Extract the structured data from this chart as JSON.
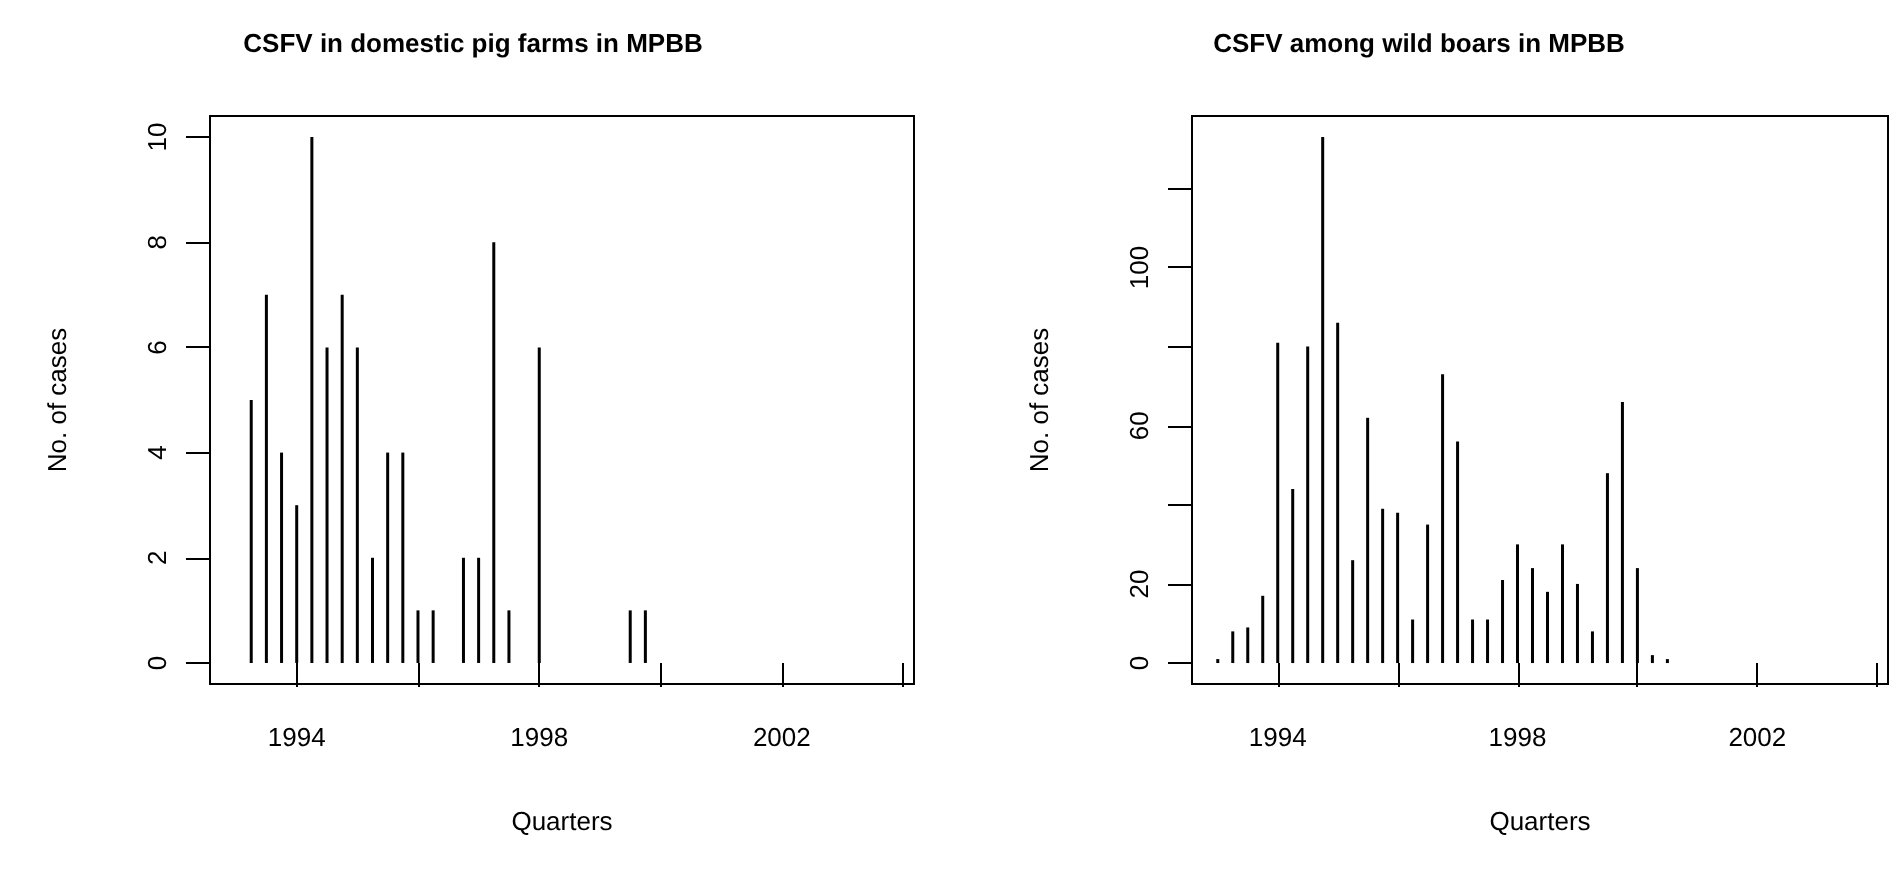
{
  "chart_data": [
    {
      "type": "bar",
      "title": "CSFV in domestic pig farms in MPBB",
      "xlabel": "Quarters",
      "ylabel": "No. of cases",
      "x": [
        1993,
        1993.25,
        1993.5,
        1993.75,
        1994,
        1994.25,
        1994.5,
        1994.75,
        1995,
        1995.25,
        1995.5,
        1995.75,
        1996,
        1996.25,
        1996.5,
        1996.75,
        1997,
        1997.25,
        1997.5,
        1997.75,
        1998,
        1998.25,
        1998.5,
        1998.75,
        1999,
        1999.25,
        1999.5,
        1999.75,
        2000,
        2000.25,
        2000.5,
        2000.75,
        2001,
        2001.25,
        2001.5,
        2001.75,
        2002,
        2002.25,
        2002.5,
        2002.75,
        2003,
        2003.25,
        2003.5,
        2003.75
      ],
      "values": [
        0,
        5,
        7,
        4,
        3,
        10,
        6,
        7,
        6,
        2,
        4,
        4,
        1,
        1,
        0,
        2,
        2,
        8,
        1,
        0,
        6,
        0,
        0,
        0,
        0,
        0,
        1,
        1,
        0,
        0,
        0,
        0,
        0,
        0,
        0,
        0,
        0,
        0,
        0,
        0,
        0,
        0,
        0,
        0
      ],
      "color": "#000000",
      "xlim": [
        1992.57,
        2004.18
      ],
      "xticks": [
        1994,
        {
          "value": 1996,
          "label": null
        },
        1998,
        {
          "value": 2000,
          "label": null
        },
        2002,
        {
          "value": 2004,
          "label": null
        }
      ],
      "ylim": [
        -0.4,
        10.4
      ],
      "yticks": [
        0,
        2,
        4,
        6,
        8,
        10
      ],
      "grid": false
    },
    {
      "type": "bar",
      "title": "CSFV among wild boars in MPBB",
      "xlabel": "Quarters",
      "ylabel": "No. of cases",
      "x": [
        1993,
        1993.25,
        1993.5,
        1993.75,
        1994,
        1994.25,
        1994.5,
        1994.75,
        1995,
        1995.25,
        1995.5,
        1995.75,
        1996,
        1996.25,
        1996.5,
        1996.75,
        1997,
        1997.25,
        1997.5,
        1997.75,
        1998,
        1998.25,
        1998.5,
        1998.75,
        1999,
        1999.25,
        1999.5,
        1999.75,
        2000,
        2000.25,
        2000.5,
        2000.75,
        2001,
        2001.25,
        2001.5,
        2001.75,
        2002,
        2002.25,
        2002.5,
        2002.75,
        2003,
        2003.25,
        2003.5,
        2003.75
      ],
      "values": [
        1,
        8,
        9,
        17,
        81,
        44,
        80,
        133,
        86,
        26,
        62,
        39,
        38,
        11,
        35,
        73,
        56,
        11,
        11,
        21,
        30,
        24,
        18,
        30,
        20,
        8,
        48,
        66,
        24,
        2,
        1,
        0,
        0,
        0,
        0,
        0,
        0,
        0,
        0,
        0,
        0,
        0,
        0,
        0
      ],
      "color": "#000000",
      "xlim": [
        1992.57,
        2004.18
      ],
      "xticks": [
        1994,
        {
          "value": 1996,
          "label": null
        },
        1998,
        {
          "value": 2000,
          "label": null
        },
        2002,
        {
          "value": 2004,
          "label": null
        }
      ],
      "ylim": [
        -5.3,
        138.3
      ],
      "yticks": [
        0,
        20,
        {
          "value": 40,
          "label": null
        },
        60,
        {
          "value": 80,
          "label": null
        },
        100,
        {
          "value": 120,
          "label": null
        }
      ],
      "grid": false
    }
  ]
}
